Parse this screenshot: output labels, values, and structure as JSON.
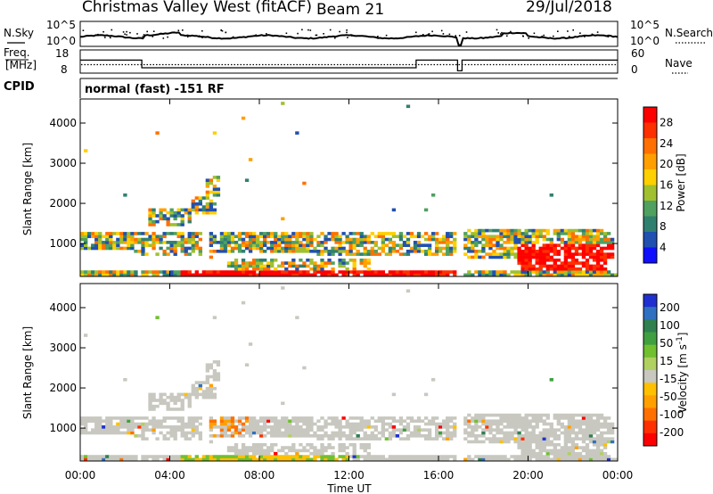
{
  "chart_data": [
    {
      "type": "line",
      "panel": "noise-and-frequency",
      "title_left": "Christmas Valley West (fitACF)",
      "title_center": "Beam 21",
      "title_right": "29/Jul/2018",
      "nsky_label": "N.Sky",
      "nsearch_label": "N.Search",
      "freq_label_line1": "Freq.",
      "freq_label_line2": "[MHz]",
      "nave_label": "Nave",
      "cpid_label": "CPID",
      "cpid_text": "normal (fast) -151 RF",
      "noise_tick_top": "10^5",
      "noise_tick_bottom": "10^0",
      "noise_tick_top_right": "10^5",
      "noise_tick_bottom_right": "10^0",
      "freq_ticks": [
        "18",
        "8"
      ],
      "nave_ticks": [
        "60",
        "0"
      ],
      "freq_series": {
        "x_hours": [
          0,
          2.75,
          2.75,
          15.0,
          15.0,
          16.85,
          16.85,
          17.05,
          17.05,
          24
        ],
        "mhz": [
          13.6,
          13.6,
          10.3,
          10.3,
          13.6,
          13.6,
          9.0,
          9.0,
          13.6,
          13.6
        ]
      },
      "nave_level": 22,
      "noise_level_frac": 0.38
    },
    {
      "type": "heatmap",
      "panel": "power",
      "ylabel": "Slant Range [km]",
      "yticks": [
        "4000",
        "3000",
        "2000",
        "1000"
      ],
      "ylim": [
        180,
        4600
      ],
      "colorbar_label": "Power [dB]",
      "colorbar_ticks": [
        "28",
        "24",
        "20",
        "16",
        "12",
        "8",
        "4"
      ],
      "colorbar_colors": [
        "#ff0000",
        "#ff3000",
        "#ff7000",
        "#ffa000",
        "#ffd000",
        "#a0c030",
        "#50a060",
        "#308070",
        "#2050b0",
        "#1010ff"
      ]
    },
    {
      "type": "heatmap",
      "panel": "velocity",
      "ylabel": "Slant Range [km]",
      "yticks": [
        "4000",
        "3000",
        "2000",
        "1000"
      ],
      "ylim": [
        180,
        4600
      ],
      "xlabel": "Time UT",
      "xticks": [
        "00:00",
        "04:00",
        "08:00",
        "12:00",
        "16:00",
        "20:00",
        "00:00"
      ],
      "colorbar_label_main": "Velocity [m s",
      "colorbar_label_sup": "-1",
      "colorbar_label_end": "]",
      "colorbar_ticks": [
        "200",
        "100",
        "50",
        "15",
        "-15",
        "-50",
        "-100",
        "-200"
      ],
      "colorbar_colors": [
        "#2030d0",
        "#3070c0",
        "#308050",
        "#40a040",
        "#70c030",
        "#b0d060",
        "#c8c8c0",
        "#ffc000",
        "#ffa000",
        "#ff7000",
        "#ff3000",
        "#ff0000"
      ]
    }
  ]
}
